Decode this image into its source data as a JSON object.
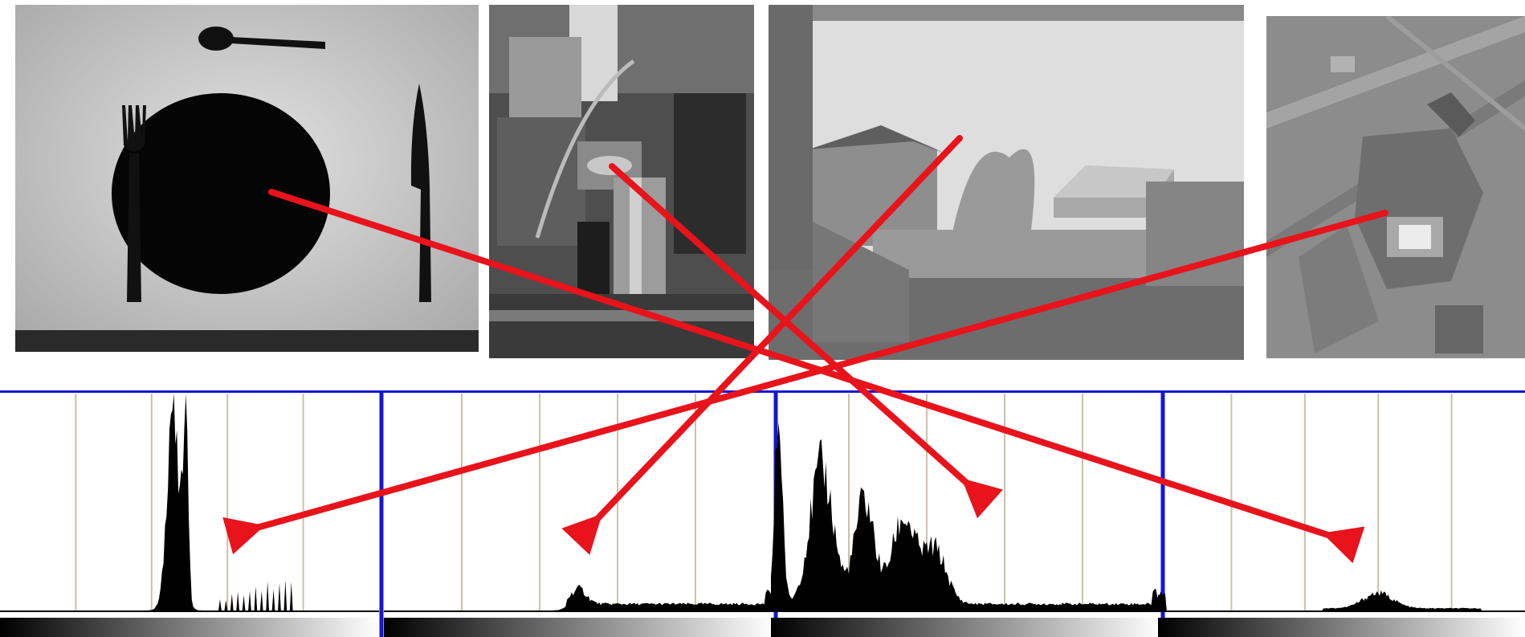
{
  "photos": [
    {
      "id": "place-setting",
      "icon": "place-setting-photo",
      "tone": "#d9d9d9"
    },
    {
      "id": "cluttered-room",
      "icon": "vacuum-cleaner-photo",
      "tone": "#6a6a6a"
    },
    {
      "id": "street-view",
      "icon": "street-view-photo",
      "tone": "#b8b8b8"
    },
    {
      "id": "robot-machine",
      "icon": "robot-machine-photo",
      "tone": "#8a8a8a"
    }
  ],
  "histograms": [
    {
      "name": "histogram-1",
      "peaks": [
        [
          0.46,
          0.65,
          0.018
        ],
        [
          0.49,
          1.0,
          0.006
        ],
        [
          0.45,
          0.35,
          0.01
        ]
      ],
      "tail": [
        0.58,
        0.78,
        0.05
      ]
    },
    {
      "name": "histogram-2",
      "peaks": [
        [
          0.5,
          0.07,
          0.02
        ]
      ],
      "base": [
        0.47,
        1.0,
        0.03
      ],
      "spike_end": 0.05
    },
    {
      "name": "histogram-3",
      "peaks": [
        [
          0.02,
          0.85,
          0.01
        ],
        [
          0.13,
          0.63,
          0.03
        ],
        [
          0.24,
          0.48,
          0.025
        ],
        [
          0.34,
          0.39,
          0.03
        ],
        [
          0.42,
          0.25,
          0.03
        ]
      ],
      "base": [
        0.0,
        0.99,
        0.03
      ],
      "spike_end": 0.06
    },
    {
      "name": "histogram-4",
      "peaks": [
        [
          0.6,
          0.07,
          0.04
        ]
      ],
      "base": [
        0.45,
        0.88,
        0.01
      ],
      "spike_start": 0.08
    }
  ],
  "arrow_color": "#e8131b",
  "panel_border_color": "#1515d8"
}
